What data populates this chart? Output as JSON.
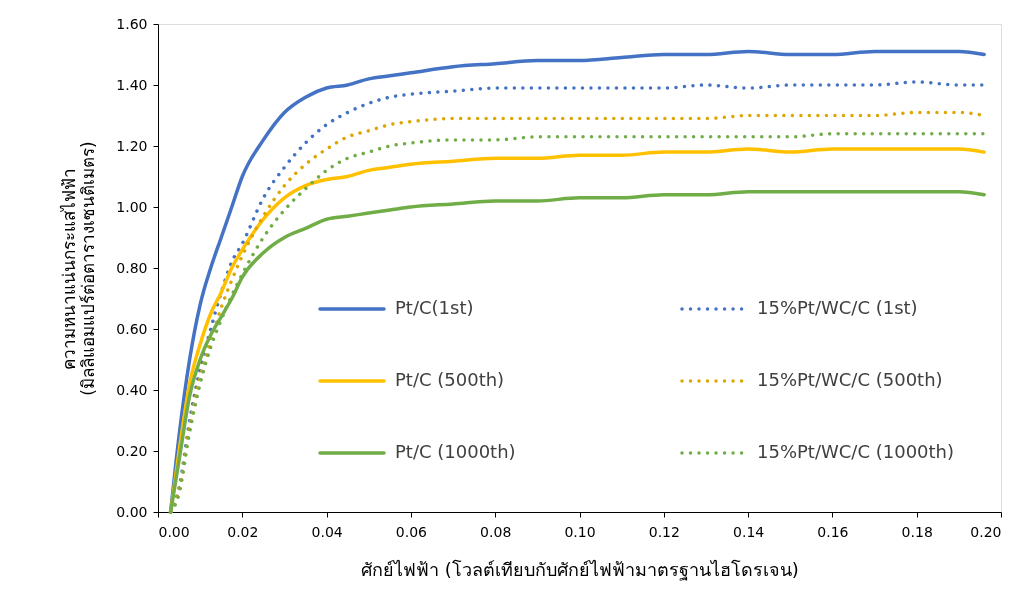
{
  "chart_data": {
    "type": "line",
    "xlabel": "ศักย์ไฟฟ้า (โวลต์เทียบกับศักย์ไฟฟ้ามาตรฐานไฮโดรเจน)",
    "ylabel": "ความหนาแน่นกระแสไฟฟ้า\n(มิลลิแอมแปร์ต่อตารางเซนติเมตร)",
    "x": [
      0.003,
      0.005,
      0.0075,
      0.01,
      0.0125,
      0.015,
      0.0175,
      0.02,
      0.025,
      0.03,
      0.035,
      0.04,
      0.045,
      0.05,
      0.055,
      0.06,
      0.07,
      0.08,
      0.09,
      0.1,
      0.11,
      0.12,
      0.13,
      0.14,
      0.15,
      0.16,
      0.17,
      0.18,
      0.19,
      0.196
    ],
    "xlim": [
      0,
      0.2
    ],
    "ylim": [
      0,
      1.6
    ],
    "xticks": [
      {
        "value": 0,
        "label": "0.00"
      },
      {
        "value": 0.02,
        "label": "0.02"
      },
      {
        "value": 0.04,
        "label": "0.04"
      },
      {
        "value": 0.06,
        "label": "0.06"
      },
      {
        "value": 0.08,
        "label": "0.08"
      },
      {
        "value": 0.1,
        "label": "0.10"
      },
      {
        "value": 0.12,
        "label": "0.12"
      },
      {
        "value": 0.14,
        "label": "0.14"
      },
      {
        "value": 0.16,
        "label": "0.16"
      },
      {
        "value": 0.18,
        "label": "0.18"
      },
      {
        "value": 0.2,
        "label": "0.20"
      }
    ],
    "yticks": [
      {
        "value": 0,
        "label": "0.00"
      },
      {
        "value": 0.2,
        "label": "0.20"
      },
      {
        "value": 0.4,
        "label": "0.40"
      },
      {
        "value": 0.6,
        "label": "0.60"
      },
      {
        "value": 0.8,
        "label": "0.80"
      },
      {
        "value": 1,
        "label": "1.00"
      },
      {
        "value": 1.2,
        "label": "1.20"
      },
      {
        "value": 1.4,
        "label": "1.40"
      },
      {
        "value": 1.6,
        "label": "1.60"
      }
    ],
    "grid": false,
    "legend": "right",
    "series": [
      {
        "name": "Pt/C(1st)",
        "color": "#4472c4",
        "line_style": "solid",
        "values": [
          0,
          0.25,
          0.5,
          0.68,
          0.8,
          0.9,
          1.0,
          1.1,
          1.22,
          1.31,
          1.36,
          1.39,
          1.4,
          1.42,
          1.43,
          1.44,
          1.46,
          1.47,
          1.48,
          1.48,
          1.49,
          1.5,
          1.5,
          1.51,
          1.5,
          1.5,
          1.51,
          1.51,
          1.51,
          1.5
        ]
      },
      {
        "name": "15%Pt/WC/C (1st)",
        "color": "#4472c4",
        "line_style": "dotted",
        "values": [
          0,
          0.08,
          0.3,
          0.47,
          0.6,
          0.72,
          0.82,
          0.88,
          1.03,
          1.13,
          1.21,
          1.27,
          1.31,
          1.34,
          1.36,
          1.37,
          1.38,
          1.39,
          1.39,
          1.39,
          1.39,
          1.39,
          1.4,
          1.39,
          1.4,
          1.4,
          1.4,
          1.41,
          1.4,
          1.4
        ]
      },
      {
        "name": "Pt/C (500th)",
        "color": "#ffc000",
        "line_style": "solid",
        "values": [
          0,
          0.2,
          0.42,
          0.55,
          0.65,
          0.72,
          0.8,
          0.86,
          0.96,
          1.03,
          1.07,
          1.09,
          1.1,
          1.12,
          1.13,
          1.14,
          1.15,
          1.16,
          1.16,
          1.17,
          1.17,
          1.18,
          1.18,
          1.19,
          1.18,
          1.19,
          1.19,
          1.19,
          1.19,
          1.18
        ]
      },
      {
        "name": "15%Pt/WC/C (500th)",
        "color": "#dda600",
        "line_style": "dotted",
        "values": [
          0,
          0.07,
          0.28,
          0.44,
          0.56,
          0.67,
          0.76,
          0.84,
          0.97,
          1.07,
          1.14,
          1.19,
          1.23,
          1.25,
          1.27,
          1.28,
          1.29,
          1.29,
          1.29,
          1.29,
          1.29,
          1.29,
          1.29,
          1.3,
          1.3,
          1.3,
          1.3,
          1.31,
          1.31,
          1.3
        ]
      },
      {
        "name": "Pt/C (1000th)",
        "color": "#70ad47",
        "line_style": "solid",
        "values": [
          0,
          0.17,
          0.38,
          0.5,
          0.58,
          0.64,
          0.7,
          0.77,
          0.85,
          0.9,
          0.93,
          0.96,
          0.97,
          0.98,
          0.99,
          1.0,
          1.01,
          1.02,
          1.02,
          1.03,
          1.03,
          1.04,
          1.04,
          1.05,
          1.05,
          1.05,
          1.05,
          1.05,
          1.05,
          1.04
        ]
      },
      {
        "name": "15%Pt/WC/C (1000th)",
        "color": "#70ad47",
        "line_style": "dotted",
        "values": [
          0,
          0.06,
          0.26,
          0.42,
          0.54,
          0.63,
          0.71,
          0.78,
          0.9,
          0.99,
          1.06,
          1.12,
          1.16,
          1.18,
          1.2,
          1.21,
          1.22,
          1.22,
          1.23,
          1.23,
          1.23,
          1.23,
          1.23,
          1.23,
          1.23,
          1.24,
          1.24,
          1.24,
          1.24,
          1.24
        ]
      }
    ]
  }
}
